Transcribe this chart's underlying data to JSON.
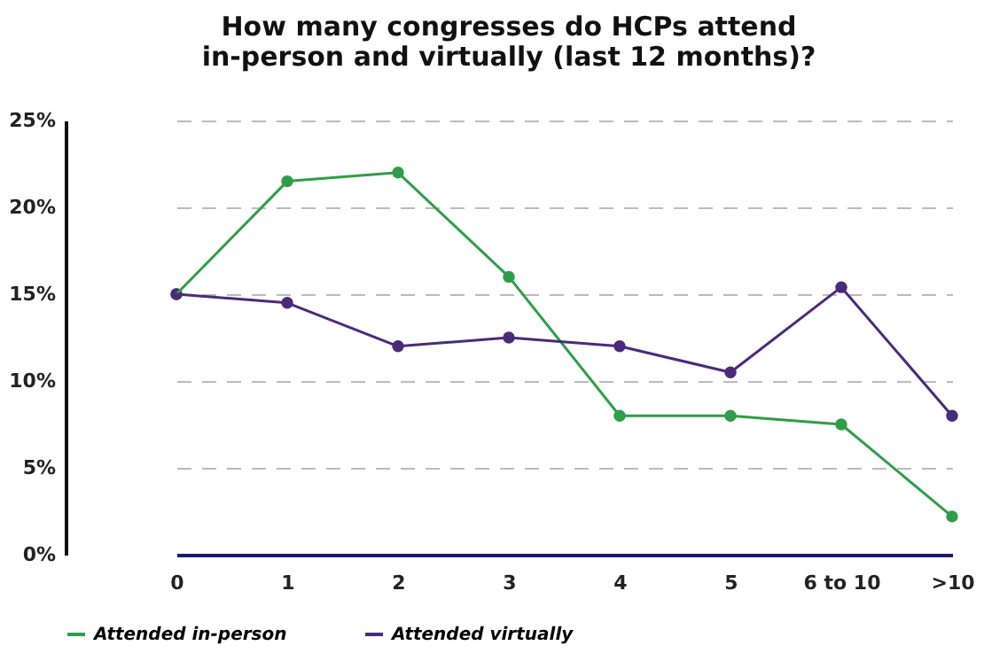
{
  "chart_data": {
    "type": "line",
    "title": "How many congresses do HCPs attend\nin-person and virtually (last 12 months)?",
    "categories": [
      "0",
      "1",
      "2",
      "3",
      "4",
      "5",
      "6 to 10",
      ">10"
    ],
    "series": [
      {
        "name": "Attended in-person",
        "color": "#2e9e48",
        "values": [
          15,
          21.5,
          22,
          16,
          8,
          8,
          7.5,
          2.2
        ]
      },
      {
        "name": "Attended virtually",
        "color": "#4b2a7b",
        "values": [
          15,
          14.5,
          12,
          12.5,
          12,
          10.5,
          15.4,
          8
        ]
      }
    ],
    "ylim": [
      0,
      25
    ],
    "yticks": [
      {
        "value": 0,
        "label": "0%"
      },
      {
        "value": 5,
        "label": "5%"
      },
      {
        "value": 10,
        "label": "10%"
      },
      {
        "value": 15,
        "label": "15%"
      },
      {
        "value": 20,
        "label": "20%"
      },
      {
        "value": 25,
        "label": "25%"
      }
    ],
    "grid": "y",
    "legend": "bottom",
    "marker": "circle",
    "line_style": "solid"
  }
}
